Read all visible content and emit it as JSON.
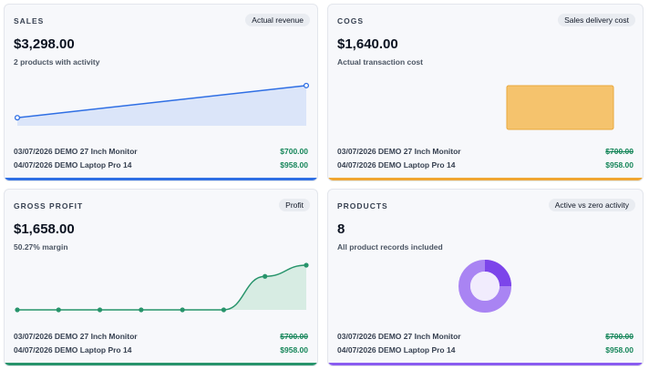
{
  "colors": {
    "sales_accent": "#2f6fe4",
    "cogs_accent": "#f0a632",
    "profit_accent": "#27946b",
    "products_accent": "#8a5cf0",
    "amount_green": "#16865a"
  },
  "cards": [
    {
      "label": "SALES",
      "badge": "Actual revenue",
      "value": "$3,298.00",
      "subtitle": "2 products with activity",
      "rows": [
        {
          "text": "03/07/2026 DEMO 27 Inch Monitor",
          "amount": "$700.00"
        },
        {
          "text": "04/07/2026 DEMO Laptop Pro 14",
          "amount": "$958.00"
        }
      ]
    },
    {
      "label": "COGS",
      "badge": "Sales delivery cost",
      "value": "$1,640.00",
      "subtitle": "Actual transaction cost",
      "rows": [
        {
          "text": "03/07/2026 DEMO 27 Inch Monitor",
          "amount": "$700.00"
        },
        {
          "text": "04/07/2026 DEMO Laptop Pro 14",
          "amount": "$958.00"
        }
      ]
    },
    {
      "label": "GROSS PROFIT",
      "badge": "Profit",
      "value": "$1,658.00",
      "subtitle": "50.27% margin",
      "rows": [
        {
          "text": "03/07/2026 DEMO 27 Inch Monitor",
          "amount": "$700.00"
        },
        {
          "text": "04/07/2026 DEMO Laptop Pro 14",
          "amount": "$958.00"
        }
      ]
    },
    {
      "label": "PRODUCTS",
      "badge": "Active vs zero activity",
      "value": "8",
      "subtitle": "All product records included",
      "rows": [
        {
          "text": "03/07/2026 DEMO 27 Inch Monitor",
          "amount": "$700.00"
        },
        {
          "text": "04/07/2026 DEMO Laptop Pro 14",
          "amount": "$958.00"
        }
      ]
    }
  ],
  "chart_data": [
    {
      "type": "line",
      "card": "SALES",
      "x": [
        0,
        1
      ],
      "values": [
        0.18,
        0.9
      ]
    },
    {
      "type": "bar",
      "card": "COGS",
      "values": [
        1
      ]
    },
    {
      "type": "line",
      "card": "GROSS PROFIT",
      "x": [
        0,
        1,
        2,
        3,
        4,
        5,
        6,
        7
      ],
      "values": [
        0,
        0,
        0,
        0,
        0,
        0,
        0.75,
        1
      ]
    },
    {
      "type": "pie",
      "card": "PRODUCTS",
      "categories": [
        "Active",
        "Zero activity"
      ],
      "values": [
        2,
        6
      ]
    }
  ]
}
